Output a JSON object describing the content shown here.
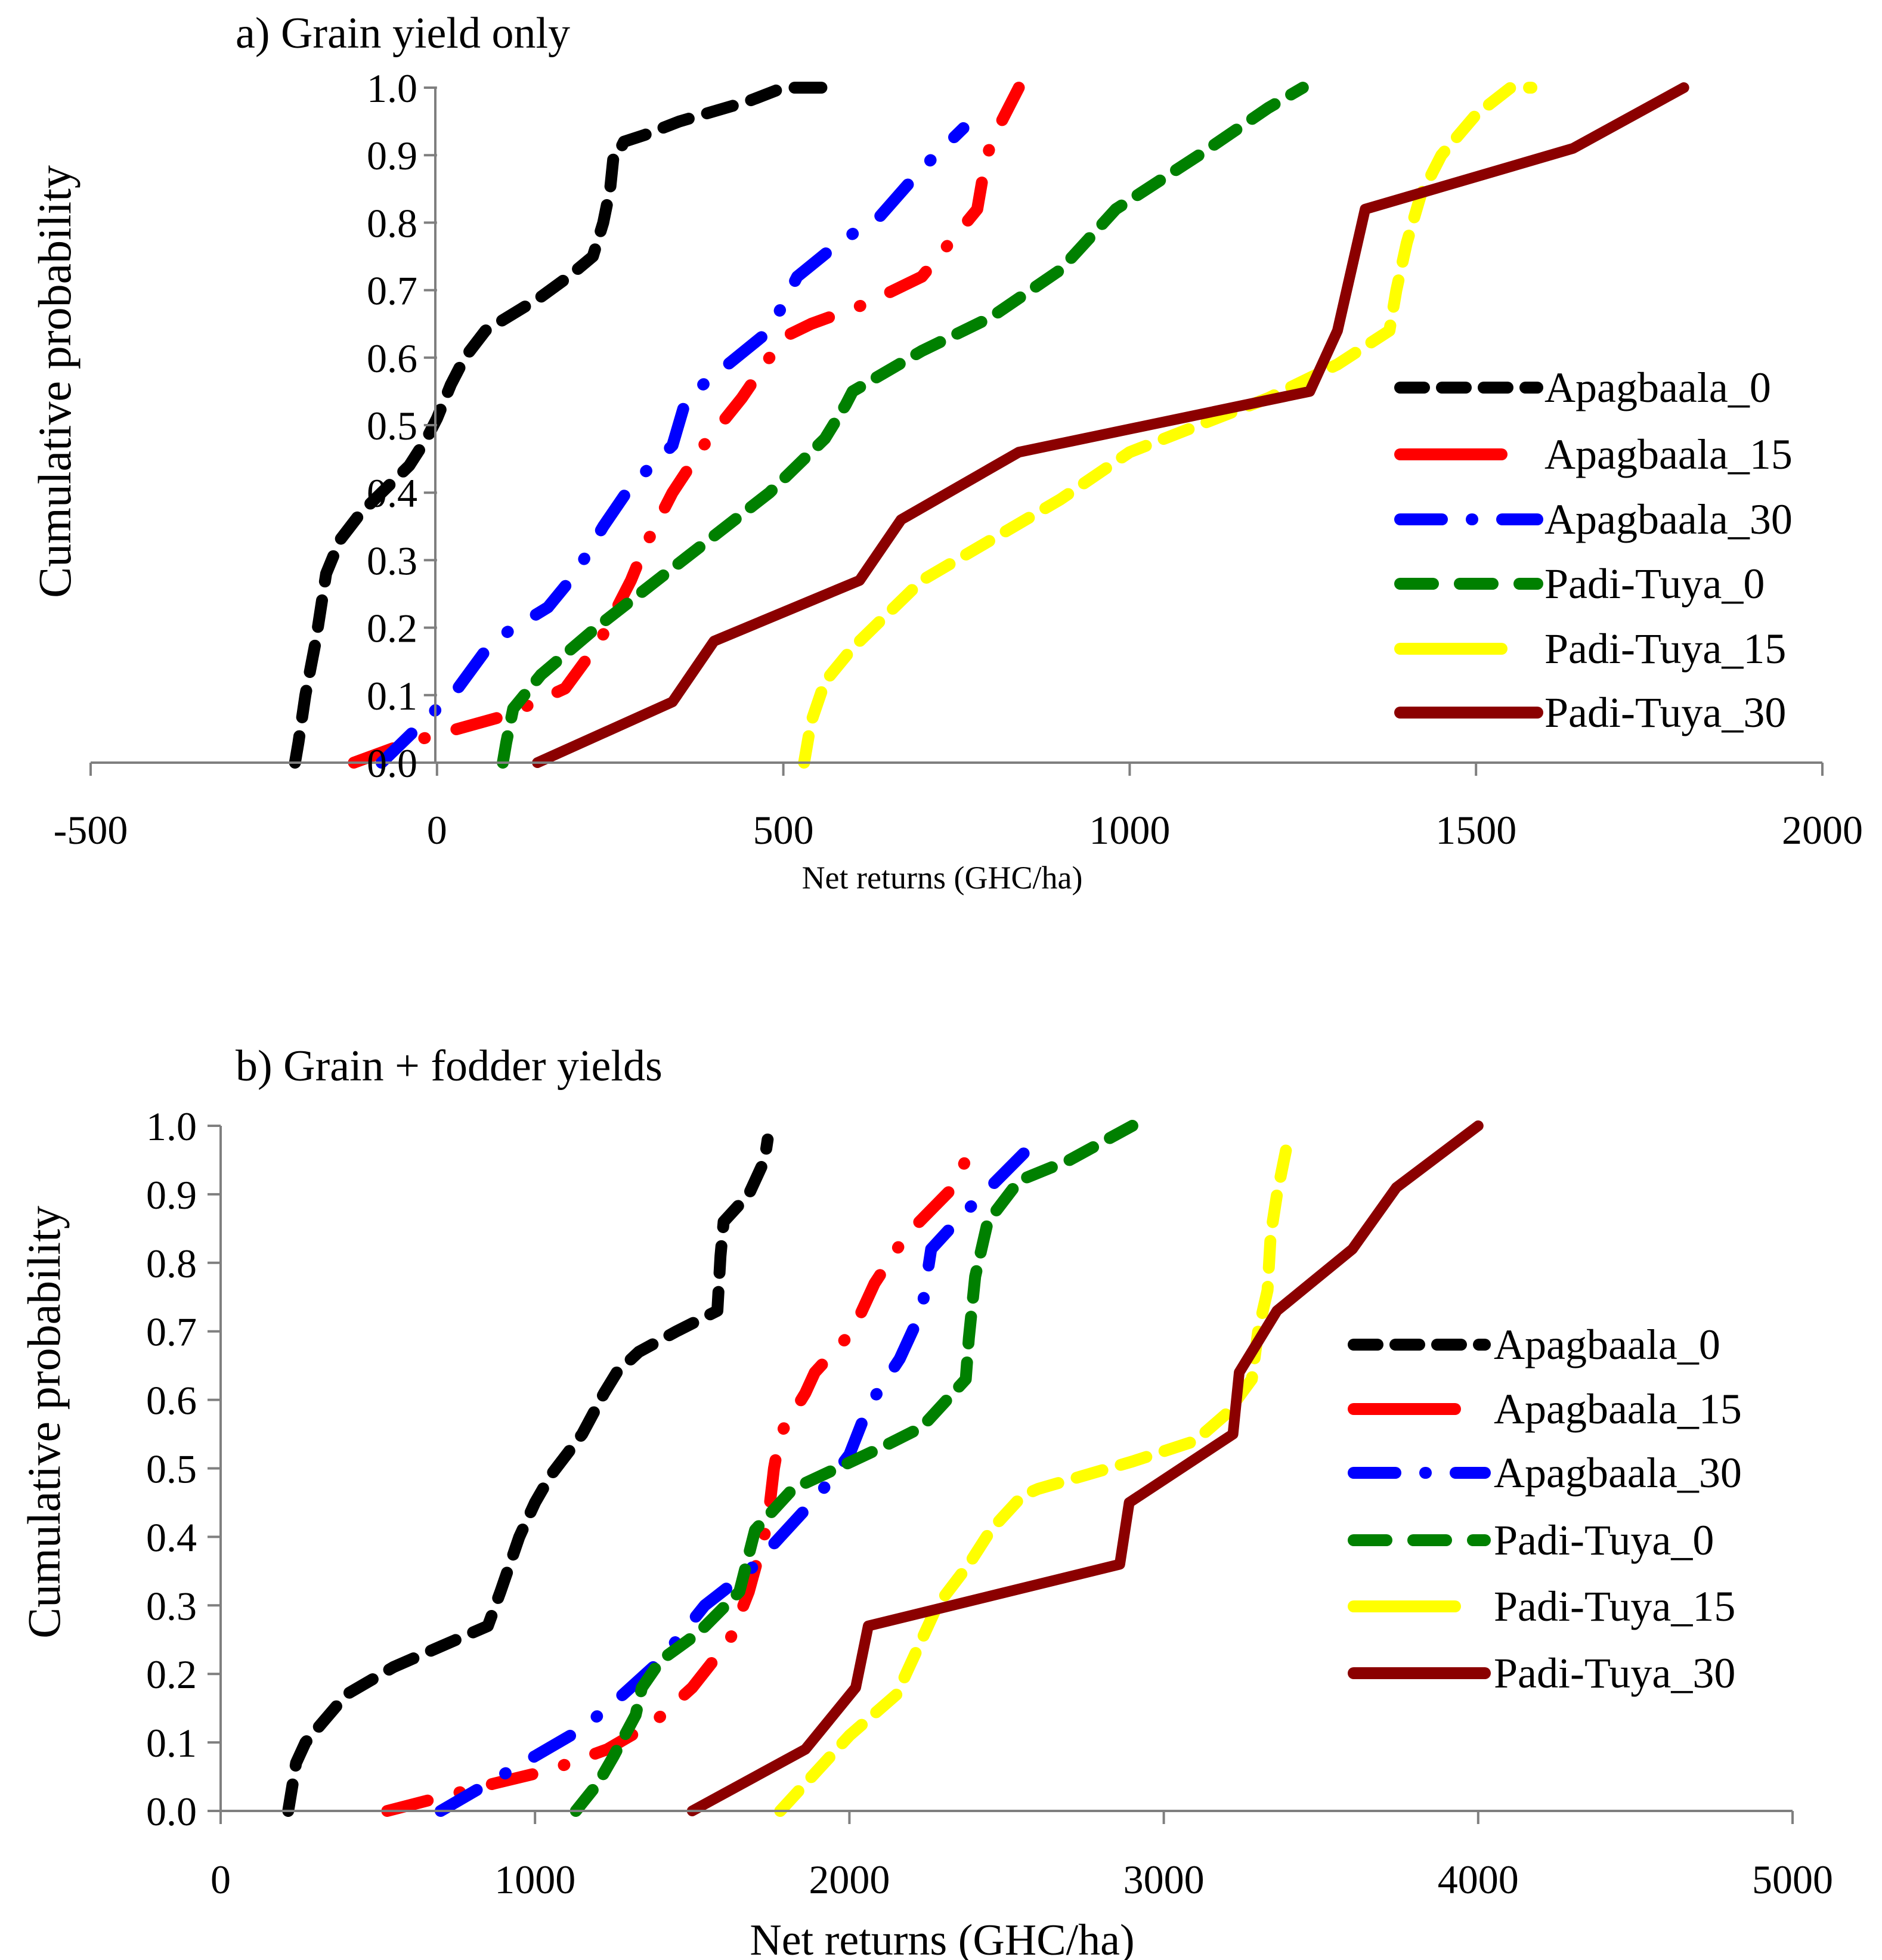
{
  "chart_data": [
    {
      "type": "line",
      "title": "a) Grain yield only",
      "xlabel": "Net returns (GHC/ha)",
      "ylabel": "Cumulative probability",
      "xlim": [
        -500,
        2000
      ],
      "ylim": [
        0,
        1
      ],
      "x_ticks": [
        -500,
        0,
        500,
        1000,
        1500,
        2000
      ],
      "x_tick_labels": [
        "-500",
        "0",
        "500",
        "1000",
        "1500",
        "2000"
      ],
      "y_ticks": [
        0,
        0.1,
        0.2,
        0.3,
        0.4,
        0.5,
        0.6,
        0.7,
        0.8,
        0.9,
        1.0
      ],
      "y_tick_labels": [
        "0.0",
        "0.1",
        "0.2",
        "0.3",
        "0.4",
        "0.5",
        "0.6",
        "0.7",
        "0.8",
        "0.9",
        "1.0"
      ],
      "legend_position": "right",
      "grid": false,
      "series": [
        {
          "name": "Apagbaala_0",
          "color": "#000000",
          "dash": "dash",
          "x": [
            -205,
            -200,
            -190,
            -175,
            -160,
            -140,
            -110,
            -80,
            -40,
            -15,
            0,
            20,
            40,
            70,
            150,
            190,
            225,
            240,
            250,
            255,
            260,
            265,
            270,
            300,
            350,
            450,
            500,
            560
          ],
          "y": [
            0.0,
            0.03,
            0.1,
            0.18,
            0.28,
            0.33,
            0.37,
            0.4,
            0.44,
            0.48,
            0.51,
            0.56,
            0.6,
            0.64,
            0.69,
            0.72,
            0.75,
            0.8,
            0.85,
            0.9,
            0.91,
            0.91,
            0.92,
            0.93,
            0.95,
            0.98,
            1.0,
            1.0
          ]
        },
        {
          "name": "Apagbaala_15",
          "color": "#ff0000",
          "dash": "dash-dot",
          "x": [
            -120,
            -40,
            30,
            100,
            185,
            235,
            280,
            300,
            340,
            385,
            440,
            500,
            540,
            620,
            700,
            740,
            780,
            790,
            800,
            840
          ],
          "y": [
            0.0,
            0.03,
            0.05,
            0.07,
            0.11,
            0.18,
            0.27,
            0.32,
            0.4,
            0.47,
            0.54,
            0.63,
            0.65,
            0.68,
            0.72,
            0.77,
            0.82,
            0.88,
            0.92,
            1.0
          ]
        },
        {
          "name": "Apagbaala_30",
          "color": "#0000ff",
          "dash": "dash-dot",
          "x": [
            -80,
            -30,
            30,
            80,
            160,
            200,
            240,
            280,
            340,
            360,
            420,
            480,
            520,
            580,
            640,
            700,
            730,
            760
          ],
          "y": [
            0.0,
            0.05,
            0.11,
            0.18,
            0.23,
            0.28,
            0.35,
            0.41,
            0.47,
            0.54,
            0.59,
            0.64,
            0.72,
            0.77,
            0.81,
            0.88,
            0.91,
            0.94
          ]
        },
        {
          "name": "Padi-Tuya_0",
          "color": "#008000",
          "dash": "dash",
          "x": [
            95,
            100,
            110,
            150,
            230,
            280,
            380,
            480,
            560,
            590,
            600,
            700,
            800,
            900,
            980,
            1100,
            1200,
            1250
          ],
          "y": [
            0.0,
            0.03,
            0.08,
            0.13,
            0.2,
            0.24,
            0.32,
            0.4,
            0.48,
            0.53,
            0.55,
            0.61,
            0.66,
            0.73,
            0.82,
            0.9,
            0.97,
            1.0
          ]
        },
        {
          "name": "Padi-Tuya_15",
          "color": "#ffff00",
          "dash": "dash",
          "x": [
            530,
            540,
            560,
            600,
            650,
            700,
            800,
            900,
            1000,
            1100,
            1200,
            1300,
            1375,
            1385,
            1400,
            1420,
            1450,
            1500,
            1550,
            1580
          ],
          "y": [
            0.0,
            0.06,
            0.12,
            0.17,
            0.22,
            0.27,
            0.33,
            0.39,
            0.46,
            0.5,
            0.54,
            0.59,
            0.64,
            0.7,
            0.77,
            0.84,
            0.9,
            0.96,
            1.0,
            1.0
          ]
        },
        {
          "name": "Padi-Tuya_30",
          "color": "#8b0000",
          "dash": "solid",
          "x": [
            145,
            340,
            400,
            610,
            670,
            840,
            1260,
            1300,
            1320,
            1340,
            1640,
            1800
          ],
          "y": [
            0.0,
            0.09,
            0.18,
            0.27,
            0.36,
            0.46,
            0.55,
            0.64,
            0.73,
            0.82,
            0.91,
            1.0
          ]
        }
      ]
    },
    {
      "type": "line",
      "title": "b) Grain + fodder yields",
      "xlabel": "Net returns (GHC/ha)",
      "ylabel": "Cumulative probability",
      "xlim": [
        0,
        5000
      ],
      "ylim": [
        0,
        1
      ],
      "x_ticks": [
        0,
        1000,
        2000,
        3000,
        4000,
        5000
      ],
      "x_tick_labels": [
        "0",
        "1000",
        "2000",
        "3000",
        "4000",
        "5000"
      ],
      "y_ticks": [
        0,
        0.1,
        0.2,
        0.3,
        0.4,
        0.5,
        0.6,
        0.7,
        0.8,
        0.9,
        1.0
      ],
      "y_tick_labels": [
        "0.0",
        "0.1",
        "0.2",
        "0.3",
        "0.4",
        "0.5",
        "0.6",
        "0.7",
        "0.8",
        "0.9",
        "1.0"
      ],
      "legend_position": "right",
      "grid": false,
      "series": [
        {
          "name": "Apagbaala_0",
          "color": "#000000",
          "dash": "dash",
          "x": [
            215,
            240,
            270,
            400,
            550,
            700,
            850,
            890,
            950,
            1000,
            1050,
            1150,
            1220,
            1260,
            1330,
            1450,
            1580,
            1590,
            1600,
            1680,
            1730,
            1740
          ],
          "y": [
            0.0,
            0.07,
            0.1,
            0.17,
            0.21,
            0.24,
            0.27,
            0.32,
            0.4,
            0.45,
            0.49,
            0.55,
            0.61,
            0.64,
            0.67,
            0.7,
            0.73,
            0.81,
            0.86,
            0.9,
            0.95,
            0.98
          ]
        },
        {
          "name": "Apagbaala_15",
          "color": "#ff0000",
          "dash": "dash-dot",
          "x": [
            530,
            700,
            870,
            1050,
            1230,
            1380,
            1500,
            1620,
            1680,
            1740,
            1760,
            1780,
            1860,
            1890,
            2010,
            2080,
            2180,
            2330,
            2370,
            2400
          ],
          "y": [
            0.0,
            0.02,
            0.04,
            0.06,
            0.09,
            0.13,
            0.18,
            0.25,
            0.32,
            0.42,
            0.5,
            0.55,
            0.61,
            0.64,
            0.7,
            0.77,
            0.84,
            0.91,
            0.95,
            0.97
          ]
        },
        {
          "name": "Apagbaala_30",
          "color": "#0000ff",
          "dash": "dash-dot",
          "x": [
            700,
            850,
            1000,
            1150,
            1280,
            1400,
            1540,
            1680,
            1780,
            1900,
            2000,
            2060,
            2160,
            2230,
            2260,
            2360,
            2490,
            2620
          ],
          "y": [
            0.0,
            0.04,
            0.08,
            0.12,
            0.17,
            0.22,
            0.3,
            0.35,
            0.4,
            0.46,
            0.52,
            0.59,
            0.66,
            0.73,
            0.82,
            0.87,
            0.93,
            0.99
          ]
        },
        {
          "name": "Padi-Tuya_0",
          "color": "#008000",
          "dash": "dash",
          "x": [
            1130,
            1200,
            1250,
            1320,
            1340,
            1400,
            1520,
            1650,
            1700,
            1820,
            1960,
            2100,
            2230,
            2370,
            2380,
            2400,
            2440,
            2540,
            2700,
            2900
          ],
          "y": [
            0.0,
            0.04,
            0.08,
            0.14,
            0.18,
            0.22,
            0.26,
            0.32,
            0.41,
            0.47,
            0.5,
            0.53,
            0.56,
            0.63,
            0.69,
            0.78,
            0.86,
            0.92,
            0.95,
            1.0
          ]
        },
        {
          "name": "Padi-Tuya_15",
          "color": "#ffff00",
          "dash": "dash",
          "x": [
            1780,
            1900,
            2000,
            2150,
            2180,
            2230,
            2280,
            2380,
            2450,
            2550,
            2600,
            2750,
            2900,
            3100,
            3200,
            3280,
            3300,
            3330,
            3340,
            3360,
            3400
          ],
          "y": [
            0.0,
            0.06,
            0.11,
            0.17,
            0.2,
            0.25,
            0.3,
            0.36,
            0.41,
            0.46,
            0.47,
            0.49,
            0.51,
            0.54,
            0.58,
            0.63,
            0.7,
            0.76,
            0.84,
            0.9,
            0.99
          ]
        },
        {
          "name": "Padi-Tuya_30",
          "color": "#8b0000",
          "dash": "solid",
          "x": [
            1500,
            1860,
            2020,
            2060,
            2860,
            2890,
            3220,
            3240,
            3360,
            3600,
            3740,
            4000
          ],
          "y": [
            0.0,
            0.09,
            0.18,
            0.27,
            0.36,
            0.45,
            0.55,
            0.64,
            0.73,
            0.82,
            0.91,
            1.0
          ]
        }
      ]
    }
  ]
}
